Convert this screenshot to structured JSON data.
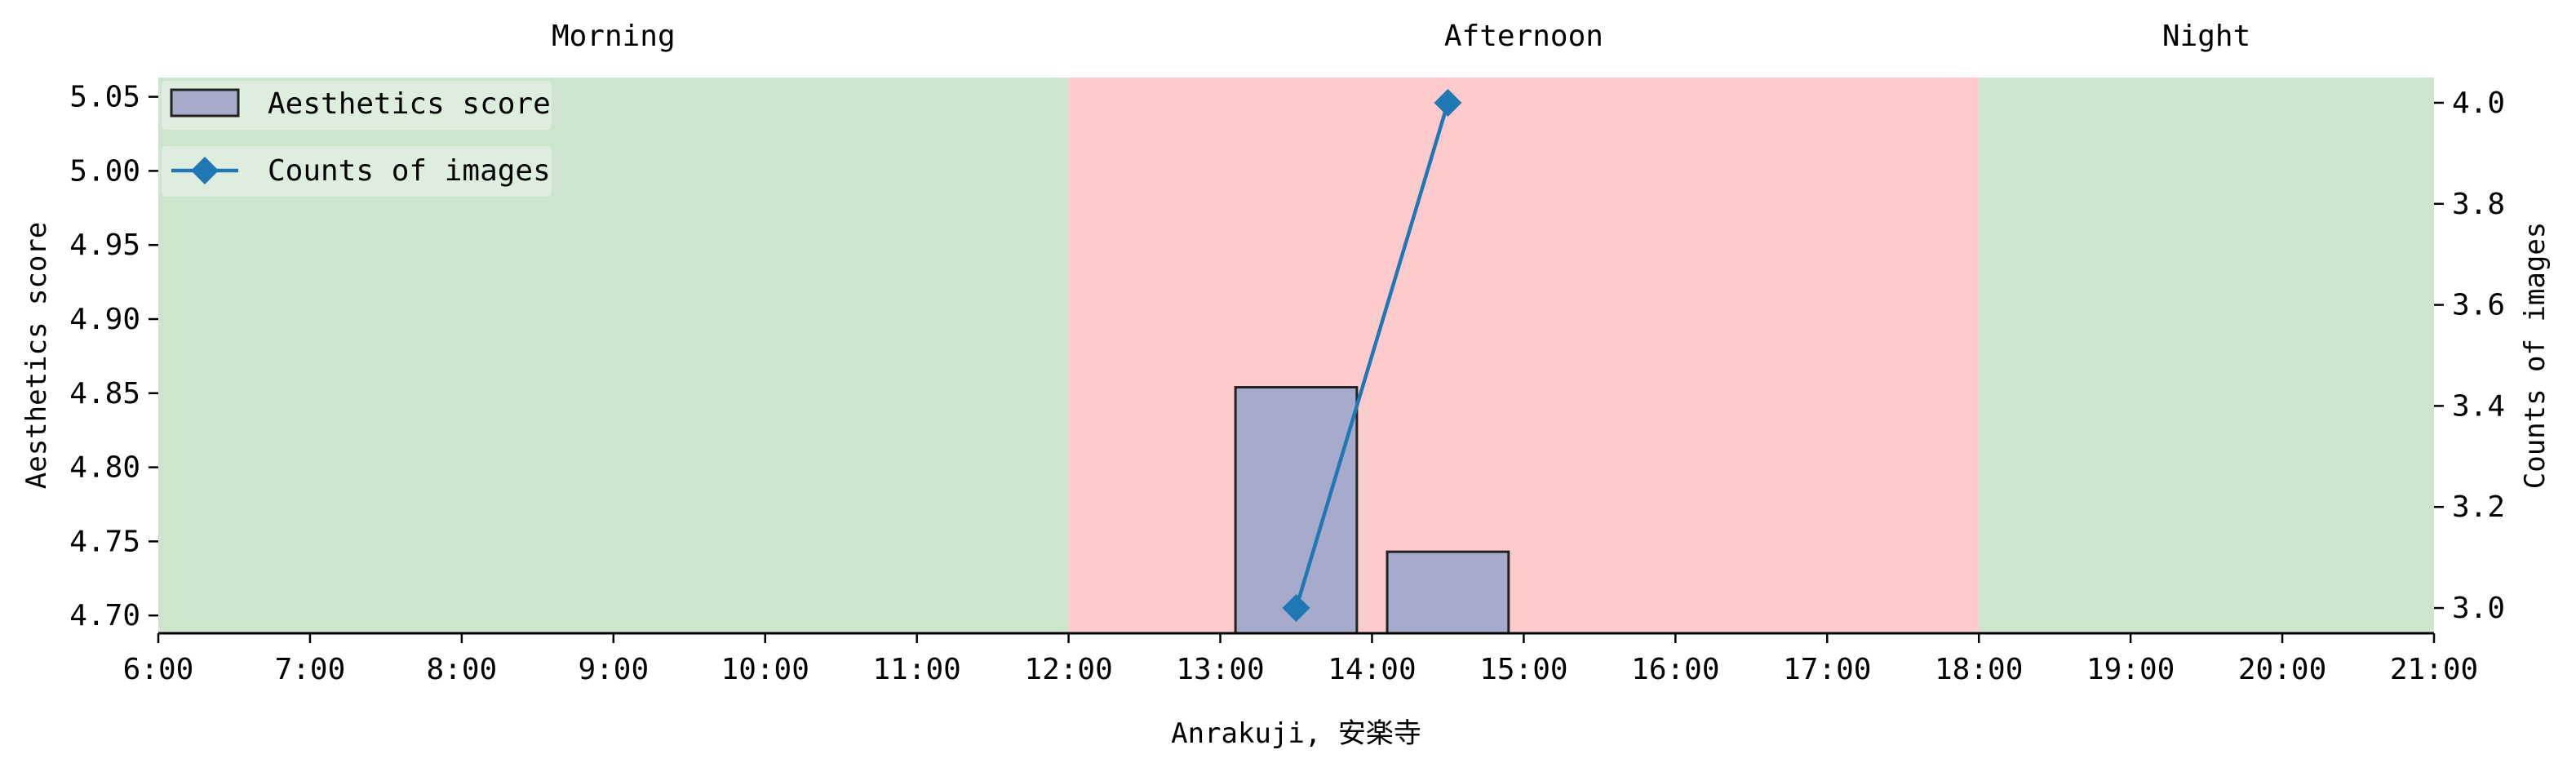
{
  "chart_data": {
    "type": "bar",
    "xlabel": "Anrakuji, 安楽寺",
    "x_ticks": [
      "6:00",
      "7:00",
      "8:00",
      "9:00",
      "10:00",
      "11:00",
      "12:00",
      "13:00",
      "14:00",
      "15:00",
      "16:00",
      "17:00",
      "18:00",
      "19:00",
      "20:00",
      "21:00"
    ],
    "x_range_hours": [
      6,
      21
    ],
    "periods": [
      {
        "label": "Morning",
        "start": 6,
        "end": 12,
        "color": "#cde5cd"
      },
      {
        "label": "Afternoon",
        "start": 12,
        "end": 18,
        "color": "#fdcbcb"
      },
      {
        "label": "Night",
        "start": 18,
        "end": 21,
        "color": "#cde5cd"
      }
    ],
    "left_axis": {
      "label": "Aesthetics score",
      "range": [
        4.688,
        5.063
      ],
      "ticks": [
        "4.70",
        "4.75",
        "4.80",
        "4.85",
        "4.90",
        "4.95",
        "5.00",
        "5.05"
      ]
    },
    "right_axis": {
      "label": "Counts of images",
      "range": [
        2.95,
        4.05
      ],
      "ticks": [
        "3.0",
        "3.2",
        "3.4",
        "3.6",
        "3.8",
        "4.0"
      ]
    },
    "series": [
      {
        "name": "Aesthetics score",
        "kind": "bar",
        "axis": "left",
        "color": "#a6aacb",
        "edge": "#222222",
        "bars": [
          {
            "x_start": 13.1,
            "x_end": 13.9,
            "value": 4.854
          },
          {
            "x_start": 14.1,
            "x_end": 14.9,
            "value": 4.743
          }
        ]
      },
      {
        "name": "Counts of images",
        "kind": "line",
        "axis": "right",
        "color": "#1f77b4",
        "marker": "diamond",
        "points": [
          {
            "x": 13.5,
            "y": 3.0
          },
          {
            "x": 14.5,
            "y": 4.0
          }
        ]
      }
    ],
    "legend": {
      "placement": "top-left"
    }
  }
}
